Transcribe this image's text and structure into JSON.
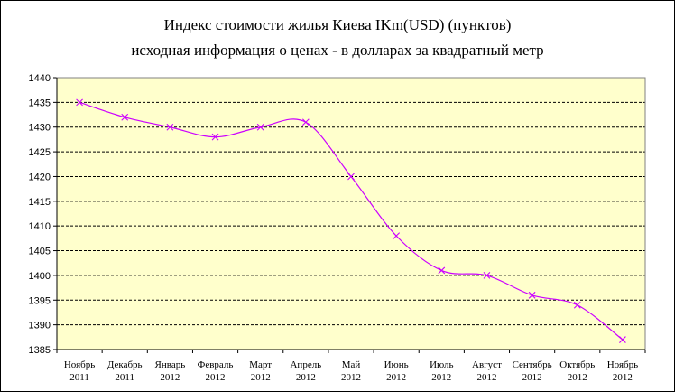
{
  "chart_data": {
    "type": "line",
    "title": "Индекс стоимости жилья Киева  IKm(USD)  (пунктов)",
    "subtitle": "исходная  информация о ценах -  в долларах за квадратный метр",
    "categories": [
      [
        "Ноябрь",
        "2011"
      ],
      [
        "Декабрь",
        "2011"
      ],
      [
        "Январь",
        "2012"
      ],
      [
        "Февраль",
        "2012"
      ],
      [
        "Март",
        "2012"
      ],
      [
        "Апрель",
        "2012"
      ],
      [
        "Май",
        "2012"
      ],
      [
        "Июнь",
        "2012"
      ],
      [
        "Июль",
        "2012"
      ],
      [
        "Август",
        "2012"
      ],
      [
        "Сентябрь",
        "2012"
      ],
      [
        "Октябрь",
        "2012"
      ],
      [
        "Ноябрь",
        "2012"
      ]
    ],
    "values": [
      1435,
      1432,
      1430,
      1428,
      1430,
      1431,
      1420,
      1408,
      1401,
      1400,
      1396,
      1394,
      1387
    ],
    "ylim": [
      1385,
      1440
    ],
    "ytick_step": 5,
    "grid": true,
    "colors": {
      "plot_bg": "#ffffcc",
      "line": "#cc00ff",
      "grid": "#000000"
    }
  }
}
